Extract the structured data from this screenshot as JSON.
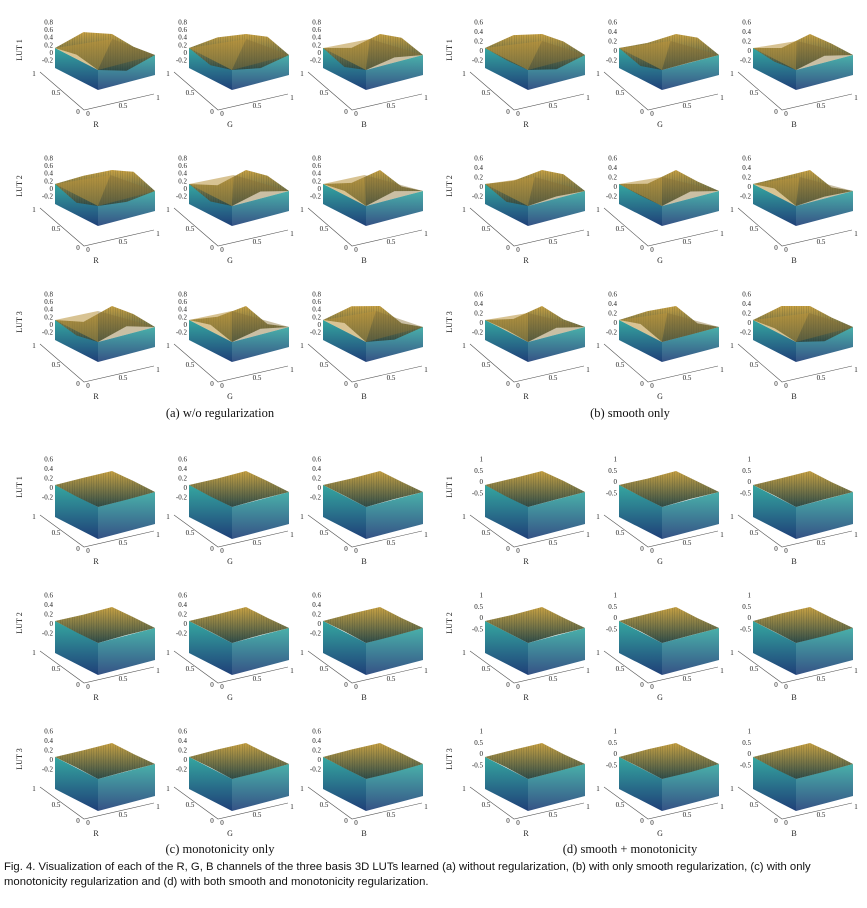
{
  "figure": {
    "panels": [
      {
        "id": "a",
        "caption": "(a)  w/o regularization",
        "z_ticks": [
          "0.8",
          "0.6",
          "0.4",
          "0.2",
          "0",
          "-0.2"
        ],
        "surface": "rough"
      },
      {
        "id": "b",
        "caption": "(b)  smooth only",
        "z_ticks": [
          "0.6",
          "0.4",
          "0.2",
          "0",
          "-0.2"
        ],
        "surface": "wavy"
      },
      {
        "id": "c",
        "caption": "(c)  monotonicity only",
        "z_ticks": [
          "0.6",
          "0.4",
          "0.2",
          "0",
          "-0.2"
        ],
        "surface": "box"
      },
      {
        "id": "d",
        "caption": "(d)  smooth + monotonicity",
        "z_ticks": [
          "1",
          "0.5",
          "0",
          "-0.5"
        ],
        "surface": "box"
      }
    ],
    "row_labels": [
      "LUT 1",
      "LUT 2",
      "LUT 3"
    ],
    "channel_labels": [
      "R",
      "G",
      "B"
    ],
    "axis_ticks": {
      "left": [
        "1",
        "0.5",
        "0"
      ],
      "right": [
        "0",
        "0.5",
        "1"
      ]
    },
    "colors": {
      "top_dark": "#2f4d4a",
      "top_light": "#c9a243",
      "side_dark": "#1f3f78",
      "side_light": "#35a7a0"
    },
    "main_caption": "Fig. 4. Visualization of each of the R, G, B channels of the three basis 3D LUTs learned (a) without regularization, (b) with only smooth regularization, (c) with only monotonicity regularization and (d) with both smooth and monotonicity regularization."
  }
}
